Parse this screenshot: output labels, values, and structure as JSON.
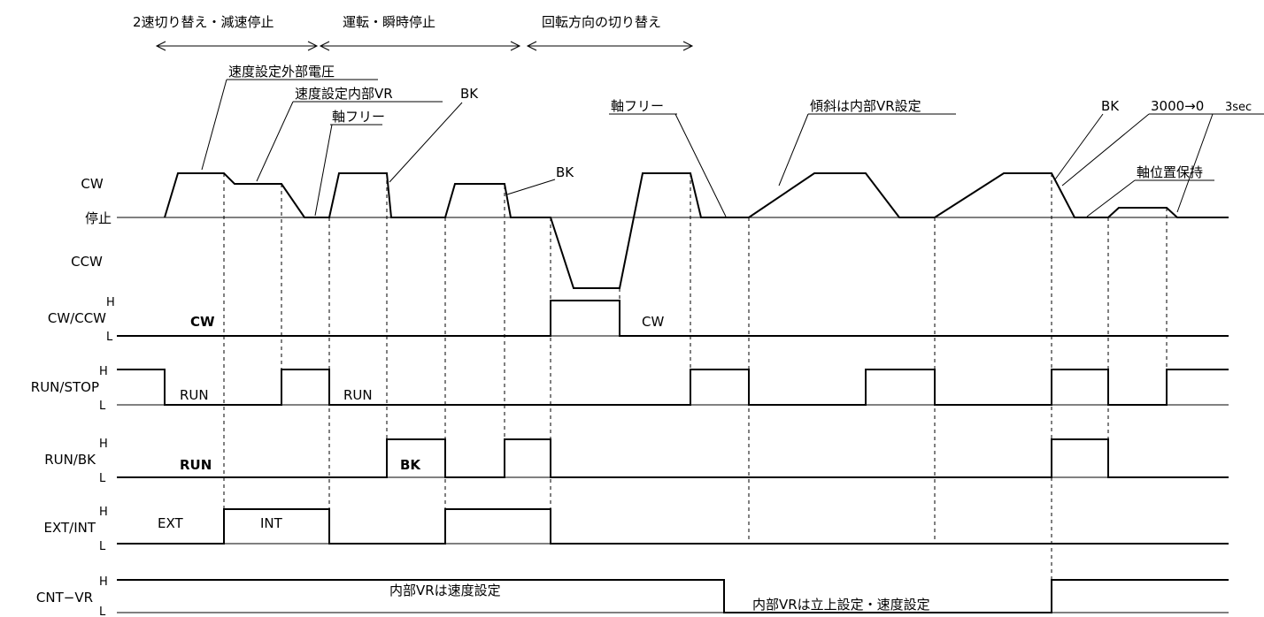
{
  "phases": [
    {
      "label": "2速切り替え・減速停止"
    },
    {
      "label": "運転・瞬時停止"
    },
    {
      "label": "回転方向の切り替え"
    }
  ],
  "signals": {
    "speed": {
      "name_cw": "CW",
      "name_stop": "停止",
      "name_ccw": "CCW"
    },
    "cwccw": {
      "name": "CW/CCW",
      "hi": "H",
      "lo": "L",
      "states": [
        "CW",
        "CW"
      ]
    },
    "runstop": {
      "name": "RUN/STOP",
      "hi": "H",
      "lo": "L",
      "states": [
        "RUN",
        "RUN"
      ]
    },
    "runbk": {
      "name": "RUN/BK",
      "hi": "H",
      "lo": "L",
      "states": [
        "RUN",
        "BK"
      ]
    },
    "extint": {
      "name": "EXT/INT",
      "hi": "H",
      "lo": "L",
      "states": [
        "EXT",
        "INT"
      ]
    },
    "cntvr": {
      "name": "CNT−VR",
      "hi": "H",
      "lo": "L",
      "states": [
        "内部VRは速度設定",
        "内部VRは立上設定・速度設定"
      ]
    }
  },
  "annotations": [
    {
      "text": "速度設定外部電圧"
    },
    {
      "text": "速度設定内部VR"
    },
    {
      "text": "BK"
    },
    {
      "text": "軸フリー"
    },
    {
      "text": "BK"
    },
    {
      "text": "軸フリー"
    },
    {
      "text": "傾斜は内部VR設定"
    },
    {
      "text": "BK"
    },
    {
      "text": "3000→0"
    },
    {
      "text": "3sec"
    },
    {
      "text": "軸位置保持"
    }
  ],
  "colors": {
    "line": "#000000",
    "background": "#ffffff"
  }
}
